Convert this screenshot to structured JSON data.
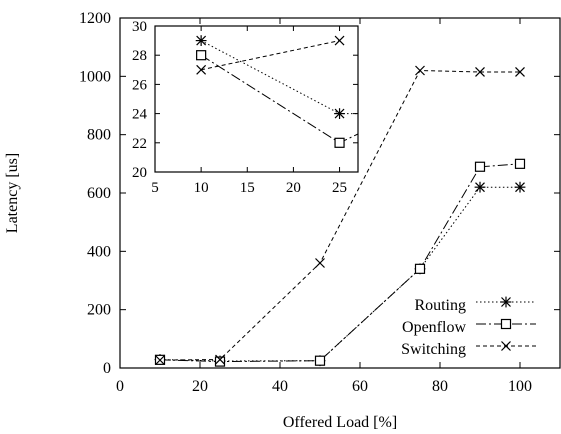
{
  "chart_data": [
    {
      "type": "line",
      "xlabel": "Offered Load [%]",
      "ylabel": "Latency [us]",
      "xlim": [
        0,
        110
      ],
      "ylim": [
        0,
        1200
      ],
      "xticks": [
        0,
        20,
        40,
        60,
        80,
        100
      ],
      "yticks": [
        0,
        200,
        400,
        600,
        800,
        1000,
        1200
      ],
      "grid": false,
      "legend_position": "bottom-right",
      "series": [
        {
          "name": "Routing",
          "marker": "asterisk",
          "dash": "dotted",
          "x": [
            10,
            25,
            50,
            75,
            90,
            100
          ],
          "y": [
            29,
            24,
            25,
            340,
            620,
            620
          ]
        },
        {
          "name": "Openflow",
          "marker": "square",
          "dash": "dash-dot",
          "x": [
            10,
            25,
            50,
            75,
            90,
            100
          ],
          "y": [
            28,
            22,
            25,
            340,
            690,
            700
          ]
        },
        {
          "name": "Switching",
          "marker": "cross",
          "dash": "dashed",
          "x": [
            10,
            25,
            50,
            75,
            90,
            100
          ],
          "y": [
            27,
            29,
            360,
            1020,
            1015,
            1015
          ]
        }
      ]
    },
    {
      "type": "line",
      "role": "inset",
      "xlim": [
        5,
        27
      ],
      "ylim": [
        20,
        30
      ],
      "xticks": [
        5,
        10,
        15,
        20,
        25
      ],
      "yticks": [
        20,
        22,
        24,
        26,
        28,
        30
      ],
      "grid": false,
      "series": [
        {
          "name": "Routing",
          "marker": "asterisk",
          "dash": "dotted",
          "x": [
            10,
            25,
            27
          ],
          "y": [
            29,
            24,
            24
          ]
        },
        {
          "name": "Openflow",
          "marker": "square",
          "dash": "dash-dot",
          "x": [
            10,
            25,
            27
          ],
          "y": [
            28,
            22,
            22.6
          ]
        },
        {
          "name": "Switching",
          "marker": "cross",
          "dash": "dashed",
          "x": [
            10,
            25
          ],
          "y": [
            27,
            29
          ]
        }
      ]
    }
  ]
}
